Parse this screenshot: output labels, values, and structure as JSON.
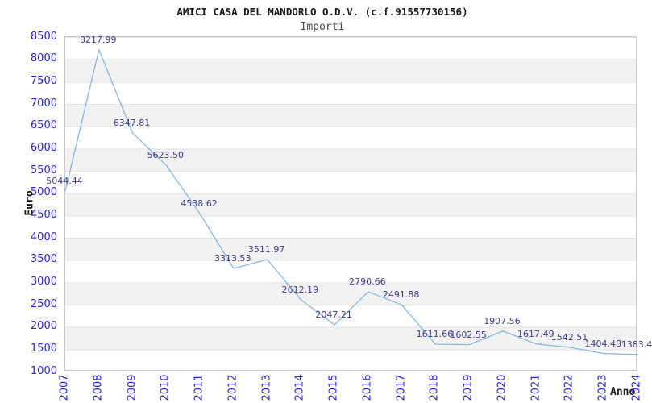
{
  "chart_data": {
    "type": "line",
    "title": "AMICI CASA DEL MANDORLO O.D.V. (c.f.91557730156)",
    "subtitle": "Importi",
    "xlabel": "Anno",
    "ylabel": "Euro",
    "x": [
      "2007",
      "2008",
      "2009",
      "2010",
      "2011",
      "2012",
      "2013",
      "2014",
      "2015",
      "2016",
      "2017",
      "2018",
      "2019",
      "2020",
      "2021",
      "2022",
      "2023",
      "2024"
    ],
    "series": [
      {
        "name": "Importi",
        "values": [
          5044.44,
          8217.99,
          6347.81,
          5623.5,
          4538.62,
          3313.53,
          3511.97,
          2612.19,
          2047.21,
          2790.66,
          2491.88,
          1611.66,
          1602.55,
          1907.56,
          1617.49,
          1542.51,
          1404.48,
          1383.4
        ]
      }
    ],
    "point_labels": [
      "5044.44",
      "8217.99",
      "6347.81",
      "5623.50",
      "4538.62",
      "3313.53",
      "3511.97",
      "2612.19",
      "2047.21",
      "2790.66",
      "2491.88",
      "1611.66",
      "1602.55",
      "1907.56",
      "1617.49",
      "1542.51",
      "1404.48",
      "1383.4"
    ],
    "ylim": [
      1000,
      8500
    ],
    "ytick_step": 500,
    "yticks": [
      "8500",
      "8000",
      "7500",
      "7000",
      "6500",
      "6000",
      "5500",
      "5000",
      "4500",
      "4000",
      "3500",
      "3000",
      "2500",
      "2000",
      "1500",
      "1000"
    ],
    "grid": "alternating-horizontal-bands",
    "legend": "none",
    "colors": {
      "line": "#85b7e6",
      "axis_tick_label": "#2424d6",
      "point_label": "#3c3c8c",
      "band": "#f2f2f2",
      "plot_border": "#c8c8c8",
      "title": "#1a1a1a",
      "subtitle": "#4a4a4a",
      "axis_title": "#1a1a1a"
    }
  }
}
